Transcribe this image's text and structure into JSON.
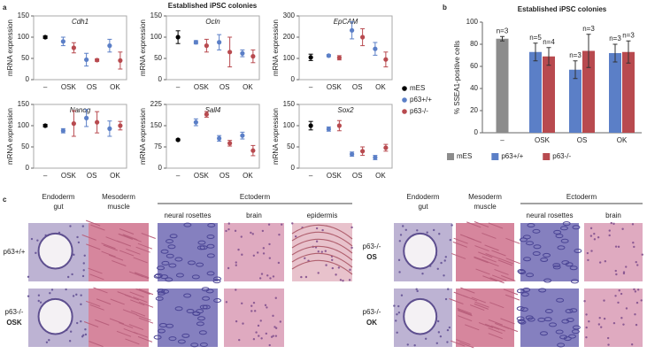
{
  "panel_labels": [
    "a",
    "b",
    "c"
  ],
  "panel_a_title": "Established iPSC colonies",
  "chart_data": [
    {
      "type": "dot",
      "title": "Cdh1",
      "ylabel": "mRNA expression",
      "categories": [
        "–",
        "OSK",
        "OS",
        "OK"
      ],
      "ylim": [
        0,
        150
      ],
      "yticks": [
        0,
        50,
        100,
        150
      ],
      "series": [
        {
          "name": "mES",
          "color": "#000000",
          "values": [
            100,
            null,
            null,
            null
          ],
          "errors": [
            3,
            null,
            null,
            null
          ]
        },
        {
          "name": "p63+/+",
          "color": "#5b7fc7",
          "values": [
            null,
            90,
            47,
            80
          ],
          "errors": [
            null,
            10,
            15,
            15
          ]
        },
        {
          "name": "p63-/-",
          "color": "#b84a4f",
          "values": [
            null,
            75,
            46,
            45
          ],
          "errors": [
            null,
            12,
            3,
            20
          ]
        }
      ]
    },
    {
      "type": "dot",
      "title": "Ocln",
      "ylabel": "mRNA expression",
      "categories": [
        "–",
        "OSK",
        "OS",
        "OK"
      ],
      "ylim": [
        0,
        150
      ],
      "yticks": [
        0,
        50,
        100,
        150
      ],
      "series": [
        {
          "name": "mES",
          "color": "#000000",
          "values": [
            100,
            null,
            null,
            null
          ],
          "errors": [
            15,
            null,
            null,
            null
          ]
        },
        {
          "name": "p63+/+",
          "color": "#5b7fc7",
          "values": [
            null,
            88,
            88,
            62
          ],
          "errors": [
            null,
            4,
            18,
            8
          ]
        },
        {
          "name": "p63-/-",
          "color": "#b84a4f",
          "values": [
            null,
            80,
            65,
            55
          ],
          "errors": [
            null,
            15,
            35,
            15
          ]
        }
      ]
    },
    {
      "type": "dot",
      "title": "EpCAM",
      "ylabel": "mRNA expression",
      "categories": [
        "–",
        "OSK",
        "OS",
        "OK"
      ],
      "ylim": [
        0,
        300
      ],
      "yticks": [
        0,
        100,
        200,
        300
      ],
      "series": [
        {
          "name": "mES",
          "color": "#000000",
          "values": [
            105,
            null,
            null,
            null
          ],
          "errors": [
            15,
            null,
            null,
            null
          ]
        },
        {
          "name": "p63+/+",
          "color": "#5b7fc7",
          "values": [
            null,
            113,
            232,
            145
          ],
          "errors": [
            null,
            5,
            40,
            30
          ]
        },
        {
          "name": "p63-/-",
          "color": "#b84a4f",
          "values": [
            null,
            103,
            200,
            95
          ],
          "errors": [
            null,
            10,
            40,
            35
          ]
        }
      ]
    },
    {
      "type": "dot",
      "title": "Nanog",
      "ylabel": "mRNA expression",
      "categories": [
        "–",
        "OSK",
        "OS",
        "OK"
      ],
      "ylim": [
        0,
        150
      ],
      "yticks": [
        0,
        50,
        100,
        150
      ],
      "series": [
        {
          "name": "mES",
          "color": "#000000",
          "values": [
            100,
            null,
            null,
            null
          ],
          "errors": [
            3,
            null,
            null,
            null
          ]
        },
        {
          "name": "p63+/+",
          "color": "#5b7fc7",
          "values": [
            null,
            88,
            118,
            93
          ],
          "errors": [
            null,
            5,
            20,
            18
          ]
        },
        {
          "name": "p63-/-",
          "color": "#b84a4f",
          "values": [
            null,
            105,
            108,
            100
          ],
          "errors": [
            null,
            30,
            25,
            10
          ]
        }
      ]
    },
    {
      "type": "dot",
      "title": "Sall4",
      "ylabel": "mRNA expression",
      "categories": [
        "–",
        "OSK",
        "OS",
        "OK"
      ],
      "ylim": [
        0,
        225
      ],
      "yticks": [
        0,
        75,
        150,
        225
      ],
      "series": [
        {
          "name": "mES",
          "color": "#000000",
          "values": [
            100,
            null,
            null,
            null
          ],
          "errors": [
            3,
            null,
            null,
            null
          ]
        },
        {
          "name": "p63+/+",
          "color": "#5b7fc7",
          "values": [
            null,
            162,
            105,
            115
          ],
          "errors": [
            null,
            12,
            10,
            12
          ]
        },
        {
          "name": "p63-/-",
          "color": "#b84a4f",
          "values": [
            null,
            190,
            88,
            62
          ],
          "errors": [
            null,
            10,
            10,
            18
          ]
        }
      ]
    },
    {
      "type": "dot",
      "title": "Sox2",
      "ylabel": "mRNA expression",
      "categories": [
        "–",
        "OSK",
        "OS",
        "OK"
      ],
      "ylim": [
        0,
        150
      ],
      "yticks": [
        0,
        50,
        100,
        150
      ],
      "series": [
        {
          "name": "mES",
          "color": "#000000",
          "values": [
            100,
            null,
            null,
            null
          ],
          "errors": [
            10,
            null,
            null,
            null
          ]
        },
        {
          "name": "p63+/+",
          "color": "#5b7fc7",
          "values": [
            null,
            92,
            33,
            25
          ],
          "errors": [
            null,
            5,
            5,
            5
          ]
        },
        {
          "name": "p63-/-",
          "color": "#b84a4f",
          "values": [
            null,
            100,
            40,
            48
          ],
          "errors": [
            null,
            12,
            10,
            8
          ]
        }
      ]
    },
    {
      "type": "bar",
      "title": "Established iPSC colonies",
      "ylabel": "% SSEA1-positive cells",
      "categories": [
        "–",
        "OSK",
        "OS",
        "OK"
      ],
      "ylim": [
        0,
        100
      ],
      "yticks": [
        0,
        20,
        40,
        60,
        80,
        100
      ],
      "legend": "bottom",
      "series": [
        {
          "name": "mES",
          "color": "#8c8c8c",
          "values": [
            85,
            null,
            null,
            null
          ],
          "errors": [
            2,
            null,
            null,
            null
          ],
          "n_labels": [
            "n=3",
            null,
            null,
            null
          ]
        },
        {
          "name": "p63+/+",
          "color": "#5b7fc7",
          "values": [
            null,
            73,
            57,
            72
          ],
          "errors": [
            null,
            8,
            8,
            8
          ],
          "n_labels": [
            null,
            "n=5",
            "n=3",
            "n=3"
          ]
        },
        {
          "name": "p63-/-",
          "color": "#b84a4f",
          "values": [
            null,
            69,
            74,
            73
          ],
          "errors": [
            null,
            8,
            15,
            10
          ],
          "n_labels": [
            null,
            "n=4",
            "n=3",
            "n=3"
          ]
        }
      ]
    }
  ],
  "histology": {
    "left": {
      "columns": [
        {
          "title": "Endoderm",
          "subtitle": "gut"
        },
        {
          "title": "Mesoderm",
          "subtitle": "muscle"
        }
      ],
      "group": "Ectoderm",
      "group_columns": [
        "neural rosettes",
        "brain",
        "epidermis"
      ],
      "rows": [
        {
          "label": "p63+/+"
        },
        {
          "label": "p63-/-",
          "condition": "OSK"
        }
      ]
    },
    "right": {
      "columns": [
        {
          "title": "Endoderm",
          "subtitle": "gut"
        },
        {
          "title": "Mesoderm",
          "subtitle": "muscle"
        }
      ],
      "group": "Ectoderm",
      "group_columns": [
        "neural rosettes",
        "brain"
      ],
      "rows": [
        {
          "label": "p63-/-",
          "condition": "OS"
        },
        {
          "label": "p63-/-",
          "condition": "OK"
        }
      ]
    }
  }
}
